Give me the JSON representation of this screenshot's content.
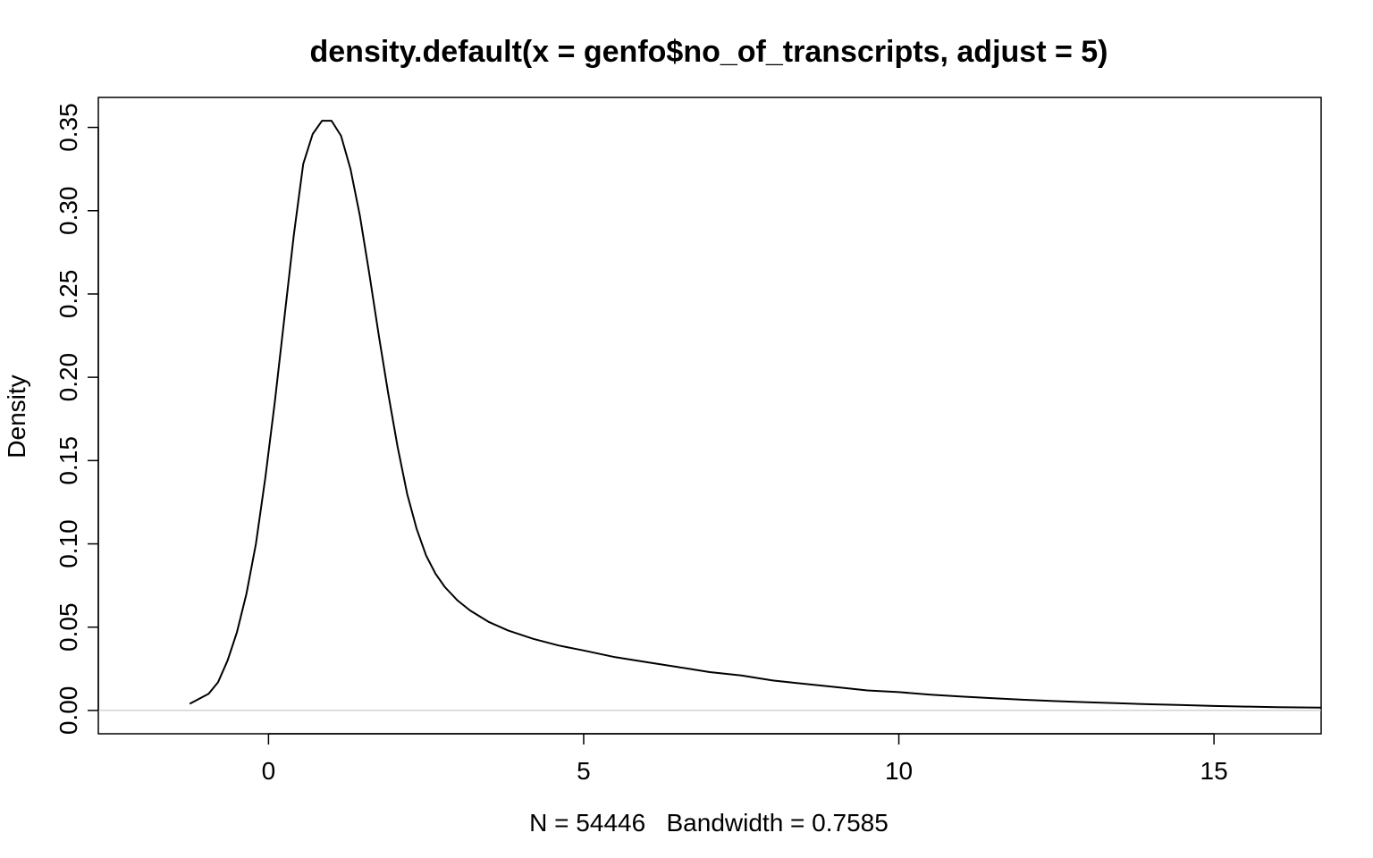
{
  "chart_data": {
    "type": "line",
    "title": "density.default(x = genfo$no_of_transcripts, adjust = 5)",
    "xlabel": "N = 54446   Bandwidth = 0.7585",
    "ylabel": "Density",
    "xlim": [
      -2.7,
      16.7
    ],
    "ylim": [
      -0.014,
      0.368
    ],
    "x_ticks": [
      0,
      5,
      10,
      15
    ],
    "x_tick_labels": [
      "0",
      "5",
      "10",
      "15"
    ],
    "y_ticks": [
      0.0,
      0.05,
      0.1,
      0.15,
      0.2,
      0.25,
      0.3,
      0.35
    ],
    "y_tick_labels": [
      "0.00",
      "0.05",
      "0.10",
      "0.15",
      "0.20",
      "0.25",
      "0.30",
      "0.35"
    ],
    "baseline": 0,
    "grid": false,
    "colors": {
      "line": "#000000",
      "baseline": "#bebebe"
    },
    "series": [
      {
        "x": [
          -1.25,
          -0.95,
          -0.8,
          -0.65,
          -0.5,
          -0.35,
          -0.2,
          -0.05,
          0.1,
          0.25,
          0.4,
          0.55,
          0.7,
          0.85,
          1.0,
          1.15,
          1.3,
          1.45,
          1.6,
          1.75,
          1.9,
          2.05,
          2.2,
          2.35,
          2.5,
          2.65,
          2.8,
          3.0,
          3.2,
          3.5,
          3.8,
          4.2,
          4.6,
          5.0,
          5.5,
          6.0,
          6.5,
          7.0,
          7.5,
          8.0,
          8.5,
          9.0,
          9.5,
          10.0,
          10.5,
          11.0,
          11.5,
          12.0,
          12.5,
          13.0,
          13.5,
          14.0,
          14.5,
          15.0,
          15.5,
          16.0,
          16.7
        ],
        "y": [
          0.004,
          0.01,
          0.017,
          0.03,
          0.047,
          0.07,
          0.1,
          0.14,
          0.185,
          0.235,
          0.285,
          0.328,
          0.346,
          0.354,
          0.354,
          0.345,
          0.325,
          0.297,
          0.262,
          0.225,
          0.19,
          0.158,
          0.13,
          0.109,
          0.093,
          0.082,
          0.074,
          0.066,
          0.06,
          0.053,
          0.048,
          0.043,
          0.039,
          0.036,
          0.032,
          0.029,
          0.026,
          0.023,
          0.021,
          0.018,
          0.016,
          0.014,
          0.012,
          0.011,
          0.0095,
          0.0083,
          0.0073,
          0.0064,
          0.0056,
          0.0049,
          0.0043,
          0.0037,
          0.0032,
          0.0027,
          0.0023,
          0.002,
          0.0017
        ]
      }
    ]
  }
}
